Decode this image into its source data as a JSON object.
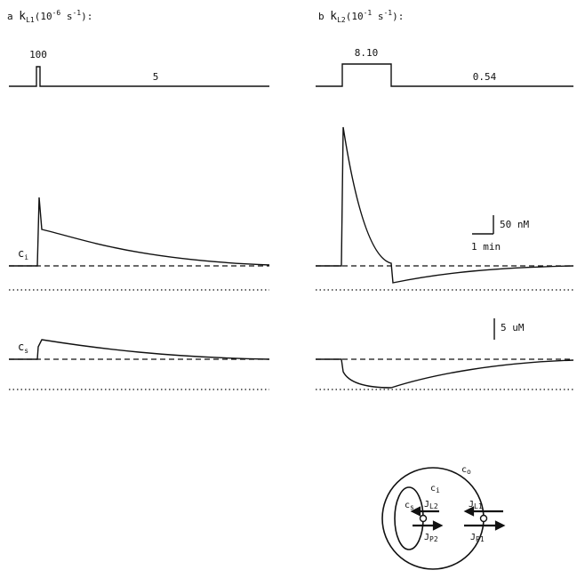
{
  "panel_a": {
    "letter": "a",
    "symbol": "k",
    "subscript": "L1",
    "unit_base": "(10",
    "unit_exp": "-6",
    "unit_s": "s",
    "unit_s_exp": "-1",
    "unit_end": "):",
    "pulse_value": "100",
    "base_value": "5"
  },
  "panel_b": {
    "letter": "b",
    "symbol": "k",
    "subscript": "L2",
    "unit_base": "(10",
    "unit_exp": "-1",
    "unit_s": "s",
    "unit_s_exp": "-1",
    "unit_end": "):",
    "pulse_value": "8.10",
    "base_value": "0.54"
  },
  "trace_labels": {
    "ci": {
      "symbol": "c",
      "subscript": "i"
    },
    "cs": {
      "symbol": "c",
      "subscript": "s"
    }
  },
  "scale_bars": {
    "concentration_i": "50 nM",
    "time": "1 min",
    "concentration_s": "5 uM"
  },
  "diagram": {
    "co": {
      "symbol": "c",
      "subscript": "o"
    },
    "ci": {
      "symbol": "c",
      "subscript": "i"
    },
    "cs": {
      "symbol": "c",
      "subscript": "s"
    },
    "jl2": {
      "symbol": "J",
      "subscript": "L2"
    },
    "jl1": {
      "symbol": "J",
      "subscript": "L1"
    },
    "jp2": {
      "symbol": "J",
      "subscript": "P2"
    },
    "jp1": {
      "symbol": "J",
      "subscript": "P1"
    }
  }
}
